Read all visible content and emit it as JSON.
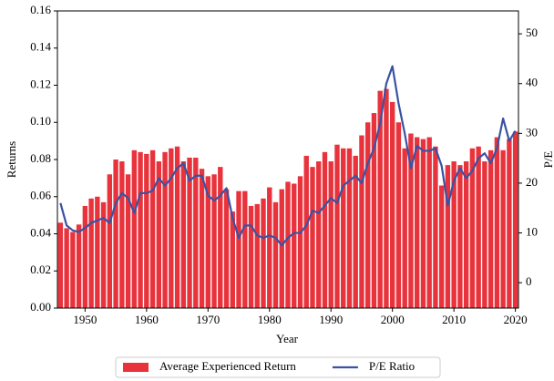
{
  "chart_data": {
    "type": "bar+line",
    "x_label": "Year",
    "y_label": "Returns",
    "y2_label": "P/E",
    "x": [
      1946,
      1947,
      1948,
      1949,
      1950,
      1951,
      1952,
      1953,
      1954,
      1955,
      1956,
      1957,
      1958,
      1959,
      1960,
      1961,
      1962,
      1963,
      1964,
      1965,
      1966,
      1967,
      1968,
      1969,
      1970,
      1971,
      1972,
      1973,
      1974,
      1975,
      1976,
      1977,
      1978,
      1979,
      1980,
      1981,
      1982,
      1983,
      1984,
      1985,
      1986,
      1987,
      1988,
      1989,
      1990,
      1991,
      1992,
      1993,
      1994,
      1995,
      1996,
      1997,
      1998,
      1999,
      2000,
      2001,
      2002,
      2003,
      2004,
      2005,
      2006,
      2007,
      2008,
      2009,
      2010,
      2011,
      2012,
      2013,
      2014,
      2015,
      2016,
      2017,
      2018,
      2019,
      2020
    ],
    "series": [
      {
        "name": "Average Experienced Return",
        "type": "bar",
        "color": "#e8333c",
        "values": [
          0.046,
          0.043,
          0.041,
          0.045,
          0.055,
          0.059,
          0.06,
          0.057,
          0.072,
          0.08,
          0.079,
          0.072,
          0.085,
          0.084,
          0.083,
          0.085,
          0.079,
          0.084,
          0.086,
          0.087,
          0.079,
          0.081,
          0.081,
          0.075,
          0.071,
          0.072,
          0.076,
          0.064,
          0.052,
          0.063,
          0.063,
          0.055,
          0.056,
          0.059,
          0.065,
          0.057,
          0.064,
          0.068,
          0.067,
          0.071,
          0.082,
          0.076,
          0.079,
          0.084,
          0.079,
          0.088,
          0.086,
          0.086,
          0.082,
          0.093,
          0.1,
          0.105,
          0.117,
          0.118,
          0.111,
          0.1,
          0.086,
          0.094,
          0.092,
          0.091,
          0.092,
          0.087,
          0.066,
          0.077,
          0.079,
          0.077,
          0.079,
          0.086,
          0.087,
          0.079,
          0.085,
          0.092,
          0.085,
          0.091,
          0.095
        ]
      },
      {
        "name": "P/E Ratio",
        "type": "line",
        "axis": "y2",
        "color": "#3a52a3",
        "values": [
          16,
          11.5,
          10.5,
          10.2,
          11,
          12,
          12.5,
          13,
          12,
          16,
          18,
          17,
          14,
          18,
          18,
          18.5,
          21,
          19.5,
          21,
          23,
          24,
          20.5,
          21.5,
          21.5,
          17.5,
          16.5,
          17.5,
          19,
          13,
          9,
          11.5,
          11.5,
          9.5,
          9,
          9.5,
          9,
          7.5,
          9,
          10,
          10,
          11.5,
          14.5,
          14,
          15.5,
          17,
          16,
          19.5,
          20.5,
          21.5,
          20,
          24,
          27,
          32,
          40,
          43.5,
          36,
          30,
          23,
          27.5,
          26.5,
          26.5,
          27,
          23.5,
          15.5,
          20.5,
          23,
          21,
          22.5,
          25,
          26,
          24,
          27,
          33,
          28.5,
          30.5
        ]
      }
    ],
    "xlim": [
      1945.5,
      2020.5
    ],
    "xticks": [
      1950,
      1960,
      1970,
      1980,
      1990,
      2000,
      2010,
      2020
    ],
    "ylim": [
      0,
      0.16
    ],
    "yticks": [
      {
        "value": 0,
        "label": "0.00"
      },
      {
        "value": 0.02,
        "label": "0.02"
      },
      {
        "value": 0.04,
        "label": "0.04"
      },
      {
        "value": 0.06,
        "label": "0.06"
      },
      {
        "value": 0.08,
        "label": "0.08"
      },
      {
        "value": 0.1,
        "label": "0.10"
      },
      {
        "value": 0.12,
        "label": "0.12"
      },
      {
        "value": 0.14,
        "label": "0.14"
      },
      {
        "value": 0.16,
        "label": "0.16"
      }
    ],
    "y2lim": [
      -5.1,
      54.6
    ],
    "y2ticks": [
      0,
      10,
      20,
      30,
      40,
      50
    ],
    "legend": "lower center"
  }
}
